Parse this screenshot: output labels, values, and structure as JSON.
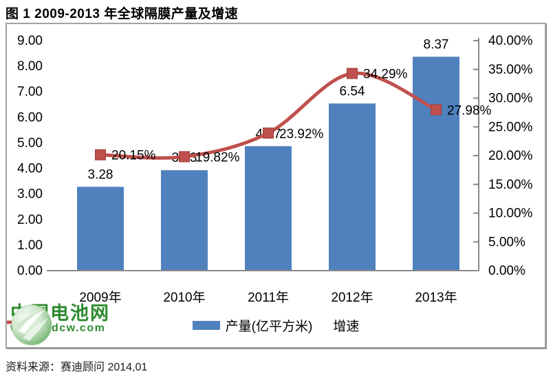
{
  "page": {
    "title": "图  1 2009-2013 年全球隔膜产量及增速",
    "source_note": "资料来源：赛迪顾问  2014,01"
  },
  "watermark": {
    "name": "中国电池网",
    "url": "www.itdcw.com",
    "color": "#2e8b2e"
  },
  "chart_data": {
    "type": "combo",
    "title": "2009-2013 年全球隔膜产量及增速",
    "categories": [
      "2009年",
      "2010年",
      "2011年",
      "2012年",
      "2013年"
    ],
    "series": [
      {
        "name": "产量(亿平方米)",
        "type": "bar",
        "axis": "left",
        "color": "#4f81bd",
        "values": [
          3.28,
          3.93,
          4.87,
          6.54,
          8.37
        ],
        "data_labels": [
          "3.28",
          "3.93",
          "4.87",
          "6.54",
          "8.37"
        ]
      },
      {
        "name": "增速",
        "type": "line",
        "axis": "right",
        "color": "#c0504d",
        "marker": "square",
        "smooth": true,
        "values": [
          20.15,
          19.82,
          23.92,
          34.29,
          27.98
        ],
        "data_labels": [
          "20.15%",
          "19.82%",
          "23.92%",
          "34.29%",
          "27.98%"
        ]
      }
    ],
    "left_axis": {
      "min": 0,
      "max": 9,
      "step": 1,
      "tick_labels": [
        "0.00",
        "1.00",
        "2.00",
        "3.00",
        "4.00",
        "5.00",
        "6.00",
        "7.00",
        "8.00",
        "9.00"
      ]
    },
    "right_axis": {
      "min": 0,
      "max": 40,
      "step": 5,
      "tick_labels": [
        "0.00%",
        "5.00%",
        "10.00%",
        "15.00%",
        "20.00%",
        "25.00%",
        "30.00%",
        "35.00%",
        "40.00%"
      ]
    },
    "grid": false,
    "legend_position": "bottom",
    "plot_bg": "#ffffff",
    "axis_color": "#898989",
    "text_color": "#000000"
  }
}
